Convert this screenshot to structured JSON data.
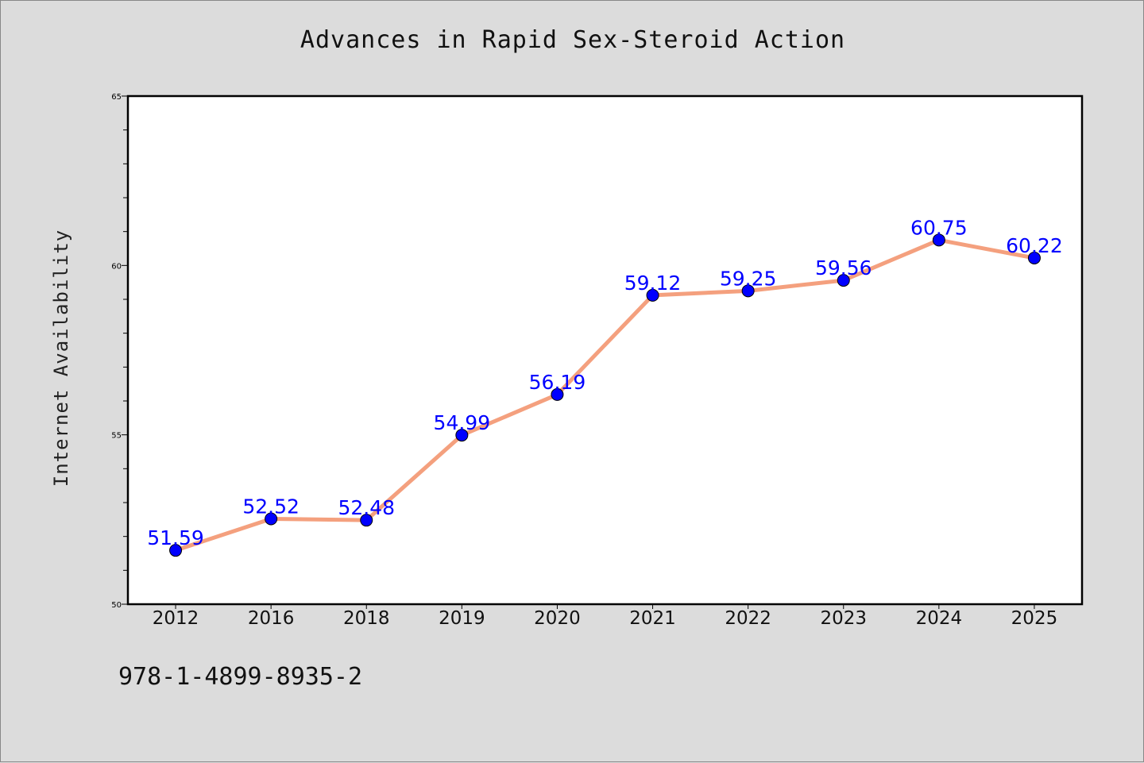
{
  "chart_data": {
    "type": "line",
    "title": "Advances in Rapid Sex-Steroid Action",
    "xlabel": "",
    "ylabel": "Internet Availability",
    "categories": [
      "2012",
      "2016",
      "2018",
      "2019",
      "2020",
      "2021",
      "2022",
      "2023",
      "2024",
      "2025"
    ],
    "values": [
      51.59,
      52.52,
      52.48,
      54.99,
      56.19,
      59.12,
      59.25,
      59.56,
      60.75,
      60.22
    ],
    "labels": [
      "51.59",
      "52.52",
      "52.48",
      "54.99",
      "56.19",
      "59.12",
      "59.25",
      "59.56",
      "60.75",
      "60.22"
    ],
    "ylim": [
      50,
      65
    ],
    "yticks": [
      "50",
      "55",
      "60",
      "65"
    ],
    "grid": false,
    "line_color": "#f4a07e",
    "marker_color": "#0000ff",
    "label_color": "#0000ff",
    "plot_background": "#ffffff"
  },
  "footer": {
    "isbn": "978-1-4899-8935-2"
  }
}
